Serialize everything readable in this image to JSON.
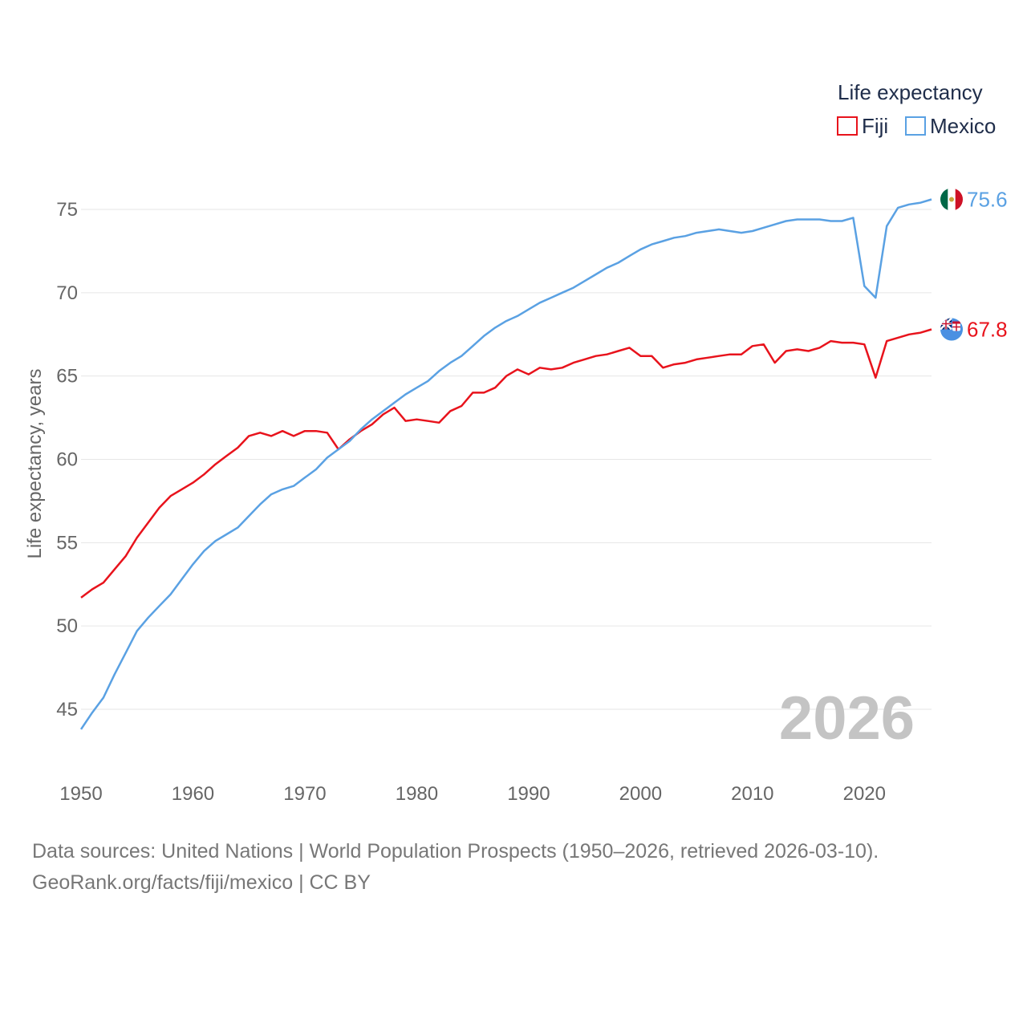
{
  "chart_data": {
    "type": "line",
    "legend_title": "Life expectancy",
    "ylabel": "Life expectancy, years",
    "xlim": [
      1950,
      2026
    ],
    "ylim": [
      43,
      77
    ],
    "y_ticks": [
      45,
      50,
      55,
      60,
      65,
      70,
      75
    ],
    "x_ticks": [
      1950,
      1960,
      1970,
      1980,
      1990,
      2000,
      2010,
      2020
    ],
    "current_year_label": "2026",
    "series": [
      {
        "name": "Fiji",
        "color": "#e8131c",
        "end_label": "67.8",
        "flag_icon": "fiji-flag-icon",
        "points": [
          [
            1950,
            51.7
          ],
          [
            1951,
            52.2
          ],
          [
            1952,
            52.6
          ],
          [
            1953,
            53.4
          ],
          [
            1954,
            54.2
          ],
          [
            1955,
            55.3
          ],
          [
            1956,
            56.2
          ],
          [
            1957,
            57.1
          ],
          [
            1958,
            57.8
          ],
          [
            1959,
            58.2
          ],
          [
            1960,
            58.6
          ],
          [
            1961,
            59.1
          ],
          [
            1962,
            59.7
          ],
          [
            1963,
            60.2
          ],
          [
            1964,
            60.7
          ],
          [
            1965,
            61.4
          ],
          [
            1966,
            61.6
          ],
          [
            1967,
            61.4
          ],
          [
            1968,
            61.7
          ],
          [
            1969,
            61.4
          ],
          [
            1970,
            61.7
          ],
          [
            1971,
            61.7
          ],
          [
            1972,
            61.6
          ],
          [
            1973,
            60.6
          ],
          [
            1974,
            61.2
          ],
          [
            1975,
            61.7
          ],
          [
            1976,
            62.1
          ],
          [
            1977,
            62.7
          ],
          [
            1978,
            63.1
          ],
          [
            1979,
            62.3
          ],
          [
            1980,
            62.4
          ],
          [
            1981,
            62.3
          ],
          [
            1982,
            62.2
          ],
          [
            1983,
            62.9
          ],
          [
            1984,
            63.2
          ],
          [
            1985,
            64.0
          ],
          [
            1986,
            64.0
          ],
          [
            1987,
            64.3
          ],
          [
            1988,
            65.0
          ],
          [
            1989,
            65.4
          ],
          [
            1990,
            65.1
          ],
          [
            1991,
            65.5
          ],
          [
            1992,
            65.4
          ],
          [
            1993,
            65.5
          ],
          [
            1994,
            65.8
          ],
          [
            1995,
            66.0
          ],
          [
            1996,
            66.2
          ],
          [
            1997,
            66.3
          ],
          [
            1998,
            66.5
          ],
          [
            1999,
            66.7
          ],
          [
            2000,
            66.2
          ],
          [
            2001,
            66.2
          ],
          [
            2002,
            65.5
          ],
          [
            2003,
            65.7
          ],
          [
            2004,
            65.8
          ],
          [
            2005,
            66.0
          ],
          [
            2006,
            66.1
          ],
          [
            2007,
            66.2
          ],
          [
            2008,
            66.3
          ],
          [
            2009,
            66.3
          ],
          [
            2010,
            66.8
          ],
          [
            2011,
            66.9
          ],
          [
            2012,
            65.8
          ],
          [
            2013,
            66.5
          ],
          [
            2014,
            66.6
          ],
          [
            2015,
            66.5
          ],
          [
            2016,
            66.7
          ],
          [
            2017,
            67.1
          ],
          [
            2018,
            67.0
          ],
          [
            2019,
            67.0
          ],
          [
            2020,
            66.9
          ],
          [
            2021,
            64.9
          ],
          [
            2022,
            67.1
          ],
          [
            2023,
            67.3
          ],
          [
            2024,
            67.5
          ],
          [
            2025,
            67.6
          ],
          [
            2026,
            67.8
          ]
        ]
      },
      {
        "name": "Mexico",
        "color": "#5aa1e3",
        "end_label": "75.6",
        "flag_icon": "mexico-flag-icon",
        "points": [
          [
            1950,
            43.8
          ],
          [
            1951,
            44.8
          ],
          [
            1952,
            45.7
          ],
          [
            1953,
            47.1
          ],
          [
            1954,
            48.4
          ],
          [
            1955,
            49.7
          ],
          [
            1956,
            50.5
          ],
          [
            1957,
            51.2
          ],
          [
            1958,
            51.9
          ],
          [
            1959,
            52.8
          ],
          [
            1960,
            53.7
          ],
          [
            1961,
            54.5
          ],
          [
            1962,
            55.1
          ],
          [
            1963,
            55.5
          ],
          [
            1964,
            55.9
          ],
          [
            1965,
            56.6
          ],
          [
            1966,
            57.3
          ],
          [
            1967,
            57.9
          ],
          [
            1968,
            58.2
          ],
          [
            1969,
            58.4
          ],
          [
            1970,
            58.9
          ],
          [
            1971,
            59.4
          ],
          [
            1972,
            60.1
          ],
          [
            1973,
            60.6
          ],
          [
            1974,
            61.1
          ],
          [
            1975,
            61.8
          ],
          [
            1976,
            62.4
          ],
          [
            1977,
            62.9
          ],
          [
            1978,
            63.4
          ],
          [
            1979,
            63.9
          ],
          [
            1980,
            64.3
          ],
          [
            1981,
            64.7
          ],
          [
            1982,
            65.3
          ],
          [
            1983,
            65.8
          ],
          [
            1984,
            66.2
          ],
          [
            1985,
            66.8
          ],
          [
            1986,
            67.4
          ],
          [
            1987,
            67.9
          ],
          [
            1988,
            68.3
          ],
          [
            1989,
            68.6
          ],
          [
            1990,
            69.0
          ],
          [
            1991,
            69.4
          ],
          [
            1992,
            69.7
          ],
          [
            1993,
            70.0
          ],
          [
            1994,
            70.3
          ],
          [
            1995,
            70.7
          ],
          [
            1996,
            71.1
          ],
          [
            1997,
            71.5
          ],
          [
            1998,
            71.8
          ],
          [
            1999,
            72.2
          ],
          [
            2000,
            72.6
          ],
          [
            2001,
            72.9
          ],
          [
            2002,
            73.1
          ],
          [
            2003,
            73.3
          ],
          [
            2004,
            73.4
          ],
          [
            2005,
            73.6
          ],
          [
            2006,
            73.7
          ],
          [
            2007,
            73.8
          ],
          [
            2008,
            73.7
          ],
          [
            2009,
            73.6
          ],
          [
            2010,
            73.7
          ],
          [
            2011,
            73.9
          ],
          [
            2012,
            74.1
          ],
          [
            2013,
            74.3
          ],
          [
            2014,
            74.4
          ],
          [
            2015,
            74.4
          ],
          [
            2016,
            74.4
          ],
          [
            2017,
            74.3
          ],
          [
            2018,
            74.3
          ],
          [
            2019,
            74.5
          ],
          [
            2020,
            70.4
          ],
          [
            2021,
            69.7
          ],
          [
            2022,
            74.0
          ],
          [
            2023,
            75.1
          ],
          [
            2024,
            75.3
          ],
          [
            2025,
            75.4
          ],
          [
            2026,
            75.6
          ]
        ]
      }
    ]
  },
  "footer": {
    "line1": "Data sources: United Nations | World Population Prospects (1950–2026, retrieved 2026-03-10).",
    "line2": "GeoRank.org/facts/fiji/mexico | CC BY"
  }
}
